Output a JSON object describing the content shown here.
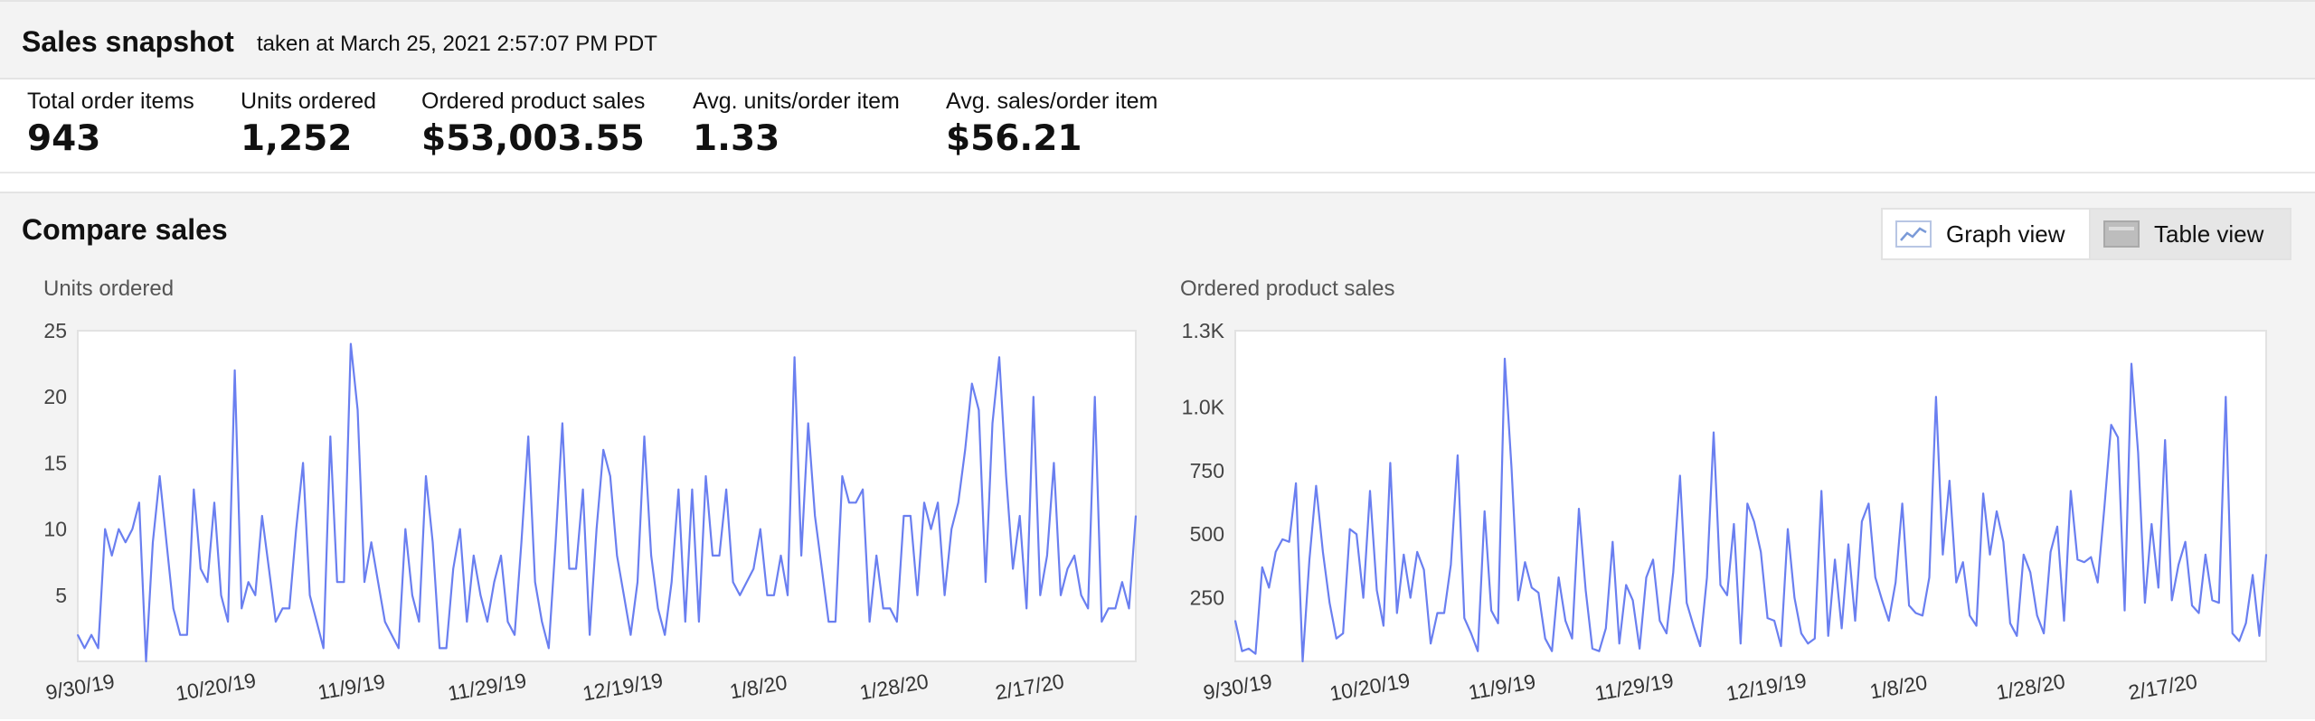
{
  "snapshot": {
    "title": "Sales snapshot",
    "timestamp_text": "taken at March 25, 2021 2:57:07 PM PDT"
  },
  "metrics": [
    {
      "label": "Total order items",
      "value": "943"
    },
    {
      "label": "Units ordered",
      "value": "1,252"
    },
    {
      "label": "Ordered product sales",
      "value": "$53,003.55"
    },
    {
      "label": "Avg. units/order item",
      "value": "1.33"
    },
    {
      "label": "Avg. sales/order item",
      "value": "$56.21"
    }
  ],
  "compare": {
    "title": "Compare sales",
    "graph_view_label": "Graph view",
    "table_view_label": "Table view",
    "selected_view": "graph",
    "icons": {
      "graph": "line-graph-icon",
      "table": "table-icon"
    }
  },
  "colors": {
    "series": "#6a7ff0",
    "header_bg": "#f3f3f3",
    "grid": "#e6e6e6"
  },
  "chart_data": [
    {
      "type": "line",
      "title": "Units ordered",
      "xlabel": "",
      "ylabel": "",
      "ylim": [
        0,
        25
      ],
      "yticks": [
        5,
        10,
        15,
        20,
        25
      ],
      "yticklabels": [
        "5",
        "10",
        "15",
        "20",
        "25"
      ],
      "x_start": "9/30/19",
      "x_end": "3/4/20",
      "xticks": [
        "9/30/19",
        "10/20/19",
        "11/9/19",
        "11/29/19",
        "12/19/19",
        "1/8/20",
        "1/28/20",
        "2/17/20"
      ],
      "grid": false,
      "values": [
        2,
        1,
        2,
        1,
        10,
        8,
        10,
        9,
        10,
        12,
        0,
        9,
        14,
        9,
        4,
        2,
        2,
        13,
        7,
        6,
        12,
        5,
        3,
        22,
        4,
        6,
        5,
        11,
        7,
        3,
        4,
        4,
        10,
        15,
        5,
        3,
        1,
        17,
        6,
        6,
        24,
        19,
        6,
        9,
        6,
        3,
        2,
        1,
        10,
        5,
        3,
        14,
        9,
        1,
        1,
        7,
        10,
        3,
        8,
        5,
        3,
        6,
        8,
        3,
        2,
        9,
        17,
        6,
        3,
        1,
        9,
        18,
        7,
        7,
        13,
        2,
        10,
        16,
        14,
        8,
        5,
        2,
        6,
        17,
        8,
        4,
        2,
        6,
        13,
        3,
        13,
        3,
        14,
        8,
        8,
        13,
        6,
        5,
        6,
        7,
        10,
        5,
        5,
        8,
        5,
        23,
        8,
        18,
        11,
        7,
        3,
        3,
        14,
        12,
        12,
        13,
        3,
        8,
        4,
        4,
        3,
        11,
        11,
        5,
        12,
        10,
        12,
        5,
        10,
        12,
        16,
        21,
        19,
        6,
        18,
        23,
        14,
        7,
        11,
        4,
        20,
        5,
        8,
        15,
        5,
        7,
        8,
        5,
        4,
        20,
        3,
        4,
        4,
        6,
        4,
        11
      ]
    },
    {
      "type": "line",
      "title": "Ordered product sales",
      "xlabel": "",
      "ylabel": "",
      "ylim": [
        0,
        1300
      ],
      "yticks": [
        250,
        500,
        750,
        1000,
        1300
      ],
      "yticklabels": [
        "250",
        "500",
        "750",
        "1.0K",
        "1.3K"
      ],
      "x_start": "9/30/19",
      "x_end": "3/4/20",
      "xticks": [
        "9/30/19",
        "10/20/19",
        "11/9/19",
        "11/29/19",
        "12/19/19",
        "1/8/20",
        "1/28/20",
        "2/17/20"
      ],
      "grid": false,
      "values": [
        160,
        40,
        50,
        30,
        370,
        290,
        430,
        480,
        470,
        700,
        0,
        400,
        690,
        430,
        230,
        90,
        110,
        520,
        500,
        250,
        670,
        280,
        140,
        780,
        190,
        420,
        250,
        430,
        360,
        70,
        190,
        190,
        380,
        810,
        170,
        110,
        40,
        590,
        200,
        150,
        1190,
        760,
        240,
        390,
        290,
        270,
        90,
        40,
        330,
        160,
        90,
        600,
        280,
        50,
        40,
        130,
        470,
        70,
        300,
        240,
        50,
        330,
        400,
        160,
        110,
        350,
        730,
        230,
        140,
        60,
        330,
        900,
        300,
        260,
        540,
        70,
        620,
        550,
        430,
        170,
        160,
        60,
        520,
        250,
        110,
        70,
        90,
        670,
        100,
        400,
        130,
        460,
        160,
        550,
        620,
        330,
        240,
        160,
        310,
        620,
        220,
        190,
        180,
        330,
        1040,
        420,
        710,
        310,
        390,
        180,
        140,
        660,
        420,
        590,
        470,
        150,
        100,
        420,
        350,
        180,
        110,
        430,
        530,
        160,
        670,
        400,
        390,
        410,
        310,
        610,
        930,
        880,
        200,
        1170,
        820,
        230,
        540,
        290,
        870,
        240,
        380,
        470,
        220,
        190,
        420,
        240,
        230,
        1040,
        110,
        80,
        150,
        340,
        100,
        420
      ]
    }
  ]
}
